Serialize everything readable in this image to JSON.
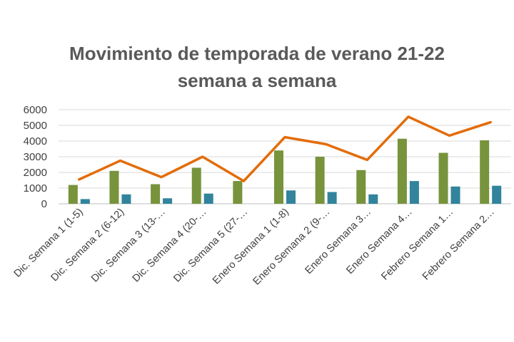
{
  "chart_data": {
    "type": "bar",
    "title_line_1": "Movimiento de temporada de verano 21-22",
    "title_line_2": "semana a semana",
    "categories": [
      "Dic. Semana 1 (1-5)",
      "Dic. Semana 2 (6-12)",
      "Dic. Semana 3 (13-…",
      "Dic. Semana 4 (20-…",
      "Dic. Semana 5 (27-…",
      "Enero Semana 1 (1-8)",
      "Enero Semana 2 (9-…",
      "Enero Semana 3…",
      "Enero Semana 4…",
      "Febrero Semana 1…",
      "Febrero Semana 2…"
    ],
    "series": [
      {
        "kind": "bar",
        "color": "#77933c",
        "values": [
          1200,
          2100,
          1250,
          2300,
          1450,
          3400,
          3000,
          2150,
          4150,
          3250,
          4050
        ]
      },
      {
        "kind": "bar",
        "color": "#31849b",
        "values": [
          300,
          600,
          350,
          650,
          0,
          850,
          750,
          600,
          1450,
          1100,
          1150
        ]
      },
      {
        "kind": "line",
        "color": "#e36c09",
        "values": [
          1550,
          2750,
          1700,
          3000,
          1450,
          4250,
          3800,
          2800,
          5550,
          4350,
          5200
        ]
      }
    ],
    "y_ticks": [
      "0",
      "1000",
      "2000",
      "3000",
      "4000",
      "5000",
      "6000"
    ],
    "ylim": [
      0,
      6000
    ],
    "grid": true,
    "legend": "none"
  }
}
